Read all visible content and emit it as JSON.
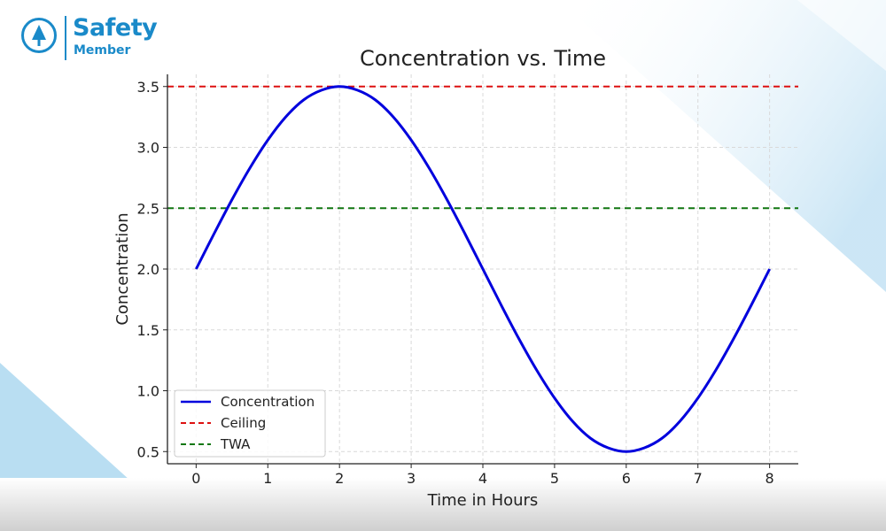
{
  "brand": {
    "name": "Safety",
    "subtitle": "Member",
    "icon": "tree-icon",
    "color": "#1a8ac9"
  },
  "chart_data": {
    "type": "line",
    "title": "Concentration vs. Time",
    "xlabel": "Time in Hours",
    "ylabel": "Concentration",
    "xlim": [
      -0.4,
      8.4
    ],
    "ylim": [
      0.4,
      3.6
    ],
    "xticks": [
      0,
      1,
      2,
      3,
      4,
      5,
      6,
      7,
      8
    ],
    "yticks": [
      0.5,
      1.0,
      1.5,
      2.0,
      2.5,
      3.0,
      3.5
    ],
    "grid": true,
    "legend_position": "lower-left",
    "series": [
      {
        "name": "Concentration",
        "style": "solid",
        "color": "#0000dd",
        "x": [
          0,
          0.25,
          0.5,
          0.75,
          1,
          1.25,
          1.5,
          1.75,
          2,
          2.25,
          2.5,
          2.75,
          3,
          3.25,
          3.5,
          3.75,
          4,
          4.25,
          4.5,
          4.75,
          5,
          5.25,
          5.5,
          5.75,
          6,
          6.25,
          6.5,
          6.75,
          7,
          7.25,
          7.5,
          7.75,
          8
        ],
        "y": [
          2.0,
          2.29,
          2.57,
          2.83,
          3.06,
          3.25,
          3.39,
          3.47,
          3.5,
          3.47,
          3.39,
          3.25,
          3.06,
          2.83,
          2.57,
          2.29,
          2.0,
          1.71,
          1.43,
          1.17,
          0.94,
          0.75,
          0.61,
          0.53,
          0.5,
          0.53,
          0.61,
          0.75,
          0.94,
          1.17,
          1.43,
          1.71,
          2.0
        ]
      },
      {
        "name": "Ceiling",
        "style": "dashed",
        "color": "#dd1111",
        "x": [
          -0.4,
          8.4
        ],
        "y": [
          3.5,
          3.5
        ]
      },
      {
        "name": "TWA",
        "style": "dashed",
        "color": "#117711",
        "x": [
          -0.4,
          8.4
        ],
        "y": [
          2.5,
          2.5
        ]
      }
    ]
  }
}
